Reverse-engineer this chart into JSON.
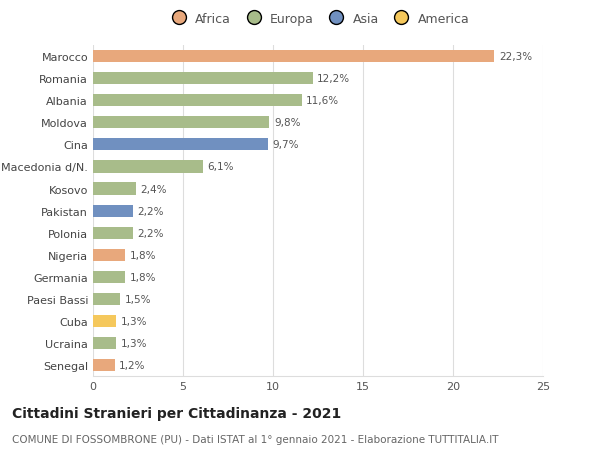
{
  "categories": [
    "Senegal",
    "Ucraina",
    "Cuba",
    "Paesi Bassi",
    "Germania",
    "Nigeria",
    "Polonia",
    "Pakistan",
    "Kosovo",
    "Macedonia d/N.",
    "Cina",
    "Moldova",
    "Albania",
    "Romania",
    "Marocco"
  ],
  "values": [
    1.2,
    1.3,
    1.3,
    1.5,
    1.8,
    1.8,
    2.2,
    2.2,
    2.4,
    6.1,
    9.7,
    9.8,
    11.6,
    12.2,
    22.3
  ],
  "colors": [
    "#E8A87C",
    "#A8BC8A",
    "#F5C85C",
    "#A8BC8A",
    "#A8BC8A",
    "#E8A87C",
    "#A8BC8A",
    "#7090C0",
    "#A8BC8A",
    "#A8BC8A",
    "#7090C0",
    "#A8BC8A",
    "#A8BC8A",
    "#A8BC8A",
    "#E8A87C"
  ],
  "labels": [
    "1,2%",
    "1,3%",
    "1,3%",
    "1,5%",
    "1,8%",
    "1,8%",
    "2,2%",
    "2,2%",
    "2,4%",
    "6,1%",
    "9,7%",
    "9,8%",
    "11,6%",
    "12,2%",
    "22,3%"
  ],
  "legend_labels": [
    "Africa",
    "Europa",
    "Asia",
    "America"
  ],
  "legend_colors": [
    "#E8A87C",
    "#A8BC8A",
    "#7090C0",
    "#F5C85C"
  ],
  "title": "Cittadini Stranieri per Cittadinanza - 2021",
  "subtitle": "COMUNE DI FOSSOMBRONE (PU) - Dati ISTAT al 1° gennaio 2021 - Elaborazione TUTTITALIA.IT",
  "xlim": [
    0,
    25
  ],
  "xticks": [
    0,
    5,
    10,
    15,
    20,
    25
  ],
  "background_color": "#ffffff",
  "grid_color": "#dddddd",
  "bar_height": 0.55,
  "title_fontsize": 10,
  "subtitle_fontsize": 7.5,
  "label_fontsize": 7.5,
  "tick_fontsize": 8,
  "legend_fontsize": 9
}
